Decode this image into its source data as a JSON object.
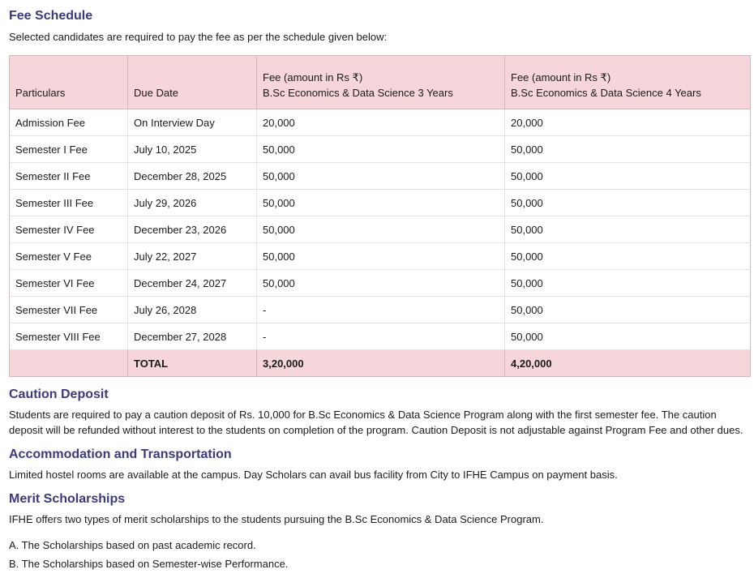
{
  "title": "Fee Schedule",
  "intro": "Selected candidates are required to pay the fee as per the schedule given below:",
  "table": {
    "headers": [
      "Particulars",
      "Due Date",
      "Fee (amount in Rs ₹)",
      "Fee (amount in Rs ₹)"
    ],
    "subheaders": [
      "B.Sc Economics & Data Science 3 Years",
      "B.Sc Economics & Data Science 4 Years"
    ],
    "rows": [
      [
        "Admission Fee",
        "On Interview Day",
        "20,000",
        "20,000"
      ],
      [
        "Semester I Fee",
        "July 10, 2025",
        "50,000",
        "50,000"
      ],
      [
        "Semester II Fee",
        "December 28, 2025",
        "50,000",
        "50,000"
      ],
      [
        "Semester III Fee",
        "July 29, 2026",
        "50,000",
        "50,000"
      ],
      [
        "Semester IV Fee",
        "December 23, 2026",
        "50,000",
        "50,000"
      ],
      [
        "Semester V Fee",
        "July 22, 2027",
        "50,000",
        "50,000"
      ],
      [
        "Semester VI Fee",
        "December 24, 2027",
        "50,000",
        "50,000"
      ],
      [
        "Semester VII Fee",
        "July 26, 2028",
        "-",
        "50,000"
      ],
      [
        "Semester VIII Fee",
        "December 27, 2028",
        "-",
        "50,000"
      ]
    ],
    "total": [
      "",
      "TOTAL",
      "3,20,000",
      "4,20,000"
    ]
  },
  "caution": {
    "title": "Caution Deposit",
    "text": "Students are required to pay a caution deposit of Rs. 10,000 for B.Sc Economics & Data Science Program along with the first semester fee. The caution deposit will be refunded without interest to the students on completion of the program. Caution Deposit is not adjustable against Program Fee and other dues."
  },
  "accommodation": {
    "title": "Accommodation and Transportation",
    "text": "Limited hostel rooms are available at the campus. Day Scholars can avail bus facility from City to IFHE Campus on payment basis."
  },
  "merit": {
    "title": "Merit Scholarships",
    "text": "IFHE offers two types of merit scholarships to the students pursuing the B.Sc Economics & Data Science Program.",
    "items": [
      "A. The Scholarships based on past academic record.",
      "B. The Scholarships based on Semester-wise Performance."
    ]
  },
  "colors": {
    "heading": "#3d3a7c",
    "header_bg": "#f6d6da"
  }
}
